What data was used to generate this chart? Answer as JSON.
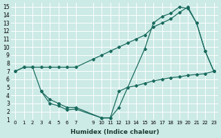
{
  "xlabel": "Humidex (Indice chaleur)",
  "background_color": "#cceae6",
  "grid_color": "#b0d8d4",
  "line_color": "#1a6b5e",
  "xlim": [
    -0.5,
    23.5
  ],
  "ylim": [
    1,
    15.5
  ],
  "xticks": [
    0,
    1,
    2,
    3,
    4,
    5,
    6,
    7,
    9,
    10,
    11,
    12,
    13,
    14,
    15,
    16,
    17,
    18,
    19,
    20,
    21,
    22,
    23
  ],
  "yticks": [
    1,
    2,
    3,
    4,
    5,
    6,
    7,
    8,
    9,
    10,
    11,
    12,
    13,
    14,
    15
  ],
  "line_ascending_x": [
    0,
    1,
    2,
    3,
    4,
    5,
    6,
    7,
    9,
    10,
    11,
    12,
    13,
    14,
    15,
    16,
    17,
    18,
    19,
    20,
    21,
    22,
    23
  ],
  "line_ascending_y": [
    7.0,
    7.5,
    7.5,
    7.5,
    7.5,
    7.5,
    7.5,
    7.5,
    8.5,
    9.0,
    9.5,
    10.0,
    10.5,
    11.0,
    11.5,
    12.5,
    13.0,
    13.5,
    14.3,
    15.0,
    13.0,
    9.5,
    7.0
  ],
  "line_v_x": [
    0,
    1,
    2,
    3,
    4,
    5,
    6,
    7,
    10,
    11,
    12,
    15,
    16,
    17,
    18,
    19,
    20,
    21,
    22,
    23
  ],
  "line_v_y": [
    7.0,
    7.5,
    7.5,
    4.5,
    3.0,
    2.7,
    2.2,
    2.3,
    1.2,
    1.2,
    2.5,
    9.8,
    13.0,
    13.8,
    14.2,
    15.0,
    14.8,
    13.0,
    9.5,
    7.0
  ],
  "line_flat_x": [
    3,
    4,
    5,
    6,
    7,
    10,
    11,
    12,
    13,
    14,
    15,
    16,
    17,
    18,
    19,
    20,
    21,
    22,
    23
  ],
  "line_flat_y": [
    4.5,
    3.5,
    3.0,
    2.5,
    2.5,
    1.2,
    1.2,
    4.5,
    5.0,
    5.2,
    5.5,
    5.8,
    6.0,
    6.2,
    6.3,
    6.5,
    6.6,
    6.7,
    7.0
  ]
}
